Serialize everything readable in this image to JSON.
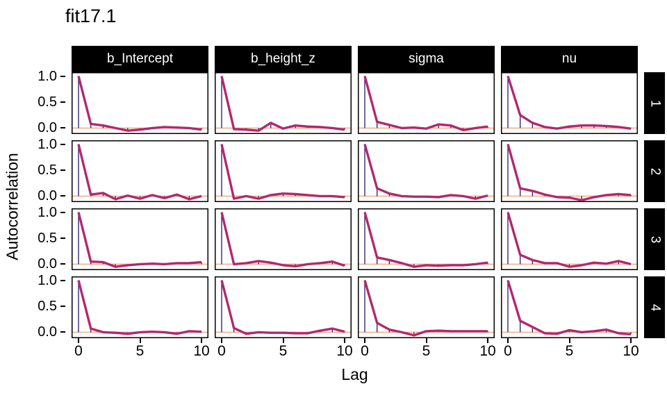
{
  "title": "fit17.1",
  "chart_data": {
    "type": "line",
    "subtype": "autocorrelation-facet-grid",
    "title": "fit17.1",
    "xlabel": "Lag",
    "ylabel": "Autocorrelation",
    "x": [
      0,
      1,
      2,
      3,
      4,
      5,
      6,
      7,
      8,
      9,
      10
    ],
    "x_ticks": [
      0,
      5,
      10
    ],
    "y_ticks": [
      1.0,
      0.5,
      0.0
    ],
    "y_tick_labels": [
      "1.0",
      "0.5",
      "0.0"
    ],
    "xlim": [
      -0.6,
      10.6
    ],
    "ylim": [
      -0.115,
      1.075
    ],
    "grid": "off",
    "col_facets": [
      "b_Intercept",
      "b_height_z",
      "sigma",
      "nu"
    ],
    "row_facets": [
      "1",
      "2",
      "3",
      "4"
    ],
    "series": [
      {
        "parameter": "b_Intercept",
        "chain": "1",
        "values": [
          1.0,
          0.08,
          0.05,
          0.0,
          -0.05,
          -0.03,
          0.0,
          0.02,
          0.01,
          0.0,
          -0.03
        ]
      },
      {
        "parameter": "b_height_z",
        "chain": "1",
        "values": [
          1.0,
          -0.02,
          -0.03,
          -0.05,
          0.1,
          -0.01,
          0.05,
          0.03,
          0.02,
          0.0,
          -0.03
        ]
      },
      {
        "parameter": "sigma",
        "chain": "1",
        "values": [
          1.0,
          0.12,
          0.06,
          0.0,
          0.01,
          -0.01,
          0.07,
          0.05,
          -0.04,
          0.0,
          0.03
        ]
      },
      {
        "parameter": "nu",
        "chain": "1",
        "values": [
          1.0,
          0.25,
          0.1,
          0.02,
          -0.01,
          0.03,
          0.05,
          0.05,
          0.04,
          0.02,
          -0.01
        ]
      },
      {
        "parameter": "b_Intercept",
        "chain": "2",
        "values": [
          1.0,
          0.03,
          0.06,
          -0.06,
          0.01,
          -0.05,
          0.02,
          -0.04,
          0.03,
          -0.06,
          0.0
        ]
      },
      {
        "parameter": "b_height_z",
        "chain": "2",
        "values": [
          1.0,
          -0.05,
          0.0,
          -0.05,
          0.02,
          0.05,
          0.04,
          0.02,
          0.0,
          0.0,
          -0.02
        ]
      },
      {
        "parameter": "sigma",
        "chain": "2",
        "values": [
          1.0,
          0.15,
          0.05,
          0.0,
          -0.01,
          -0.01,
          -0.02,
          0.02,
          0.0,
          -0.05,
          0.01
        ]
      },
      {
        "parameter": "nu",
        "chain": "2",
        "values": [
          1.0,
          0.15,
          0.1,
          0.03,
          -0.02,
          -0.03,
          -0.08,
          -0.02,
          0.02,
          0.04,
          0.02
        ]
      },
      {
        "parameter": "b_Intercept",
        "chain": "3",
        "values": [
          1.0,
          0.05,
          0.04,
          -0.05,
          -0.02,
          0.0,
          0.01,
          0.0,
          0.02,
          0.02,
          0.04
        ]
      },
      {
        "parameter": "b_height_z",
        "chain": "3",
        "values": [
          1.0,
          0.0,
          0.02,
          0.06,
          0.03,
          -0.02,
          -0.04,
          0.0,
          0.02,
          0.05,
          -0.03
        ]
      },
      {
        "parameter": "sigma",
        "chain": "3",
        "values": [
          1.0,
          0.13,
          0.08,
          0.02,
          -0.05,
          -0.02,
          -0.03,
          -0.02,
          -0.02,
          0.0,
          0.03
        ]
      },
      {
        "parameter": "nu",
        "chain": "3",
        "values": [
          1.0,
          0.18,
          0.08,
          0.02,
          0.02,
          -0.05,
          -0.02,
          0.03,
          0.01,
          0.06,
          0.0
        ]
      },
      {
        "parameter": "b_Intercept",
        "chain": "4",
        "values": [
          1.0,
          0.07,
          0.0,
          -0.01,
          -0.03,
          0.0,
          0.01,
          0.0,
          -0.03,
          0.02,
          0.01
        ]
      },
      {
        "parameter": "b_height_z",
        "chain": "4",
        "values": [
          1.0,
          0.08,
          -0.03,
          0.0,
          -0.01,
          -0.01,
          -0.02,
          -0.02,
          0.03,
          0.07,
          0.01
        ]
      },
      {
        "parameter": "sigma",
        "chain": "4",
        "values": [
          1.0,
          0.18,
          0.05,
          0.0,
          -0.06,
          0.02,
          0.03,
          0.02,
          0.02,
          0.02,
          0.02
        ]
      },
      {
        "parameter": "nu",
        "chain": "4",
        "values": [
          1.0,
          0.22,
          0.1,
          -0.02,
          -0.03,
          0.04,
          0.0,
          0.02,
          0.05,
          -0.02,
          -0.04
        ]
      }
    ],
    "colors": {
      "acf_line": "#B2286E",
      "lag_stem": "#2A156B",
      "zero_line": "#F2B28C",
      "strip_bg": "#000000",
      "strip_text": "#FFFFFF",
      "panel_border": "#000000",
      "panel_bg": "#FFFFFF",
      "text": "#000000"
    },
    "legend": "none"
  }
}
